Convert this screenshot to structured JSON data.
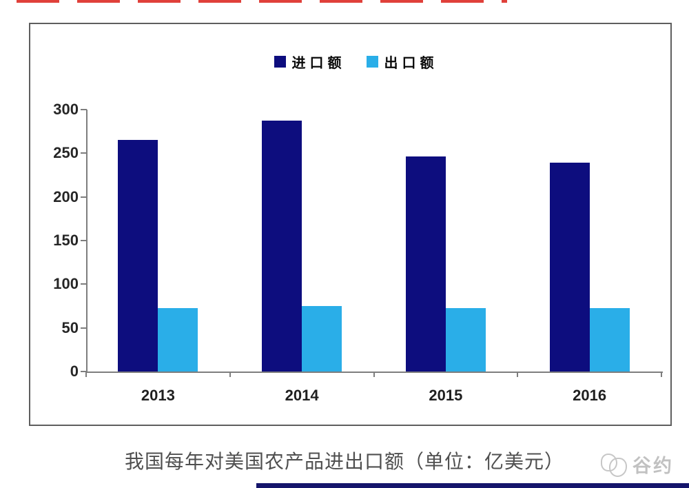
{
  "page": {
    "caption": "我国每年对美国农产品进出口额（单位：亿美元）",
    "watermark": "谷约"
  },
  "chart_data": {
    "type": "bar",
    "title": "我国每年对美国农产品进出口额（单位：亿美元）",
    "categories": [
      "2013",
      "2014",
      "2015",
      "2016"
    ],
    "series": [
      {
        "name": "进口额",
        "color": "#0d0d7e",
        "values": [
          265,
          287,
          246,
          239
        ]
      },
      {
        "name": "出口额",
        "color": "#2aaee8",
        "values": [
          73,
          75,
          73,
          73
        ]
      }
    ],
    "xlabel": "",
    "ylabel": "",
    "unit": "亿美元",
    "ylim": [
      0,
      300
    ],
    "yticks": [
      0,
      50,
      100,
      150,
      200,
      250,
      300
    ],
    "grid": false,
    "legend_position": "top-center",
    "axis_color": "#7d7d7d",
    "frame_color": "#5e5e5e"
  }
}
